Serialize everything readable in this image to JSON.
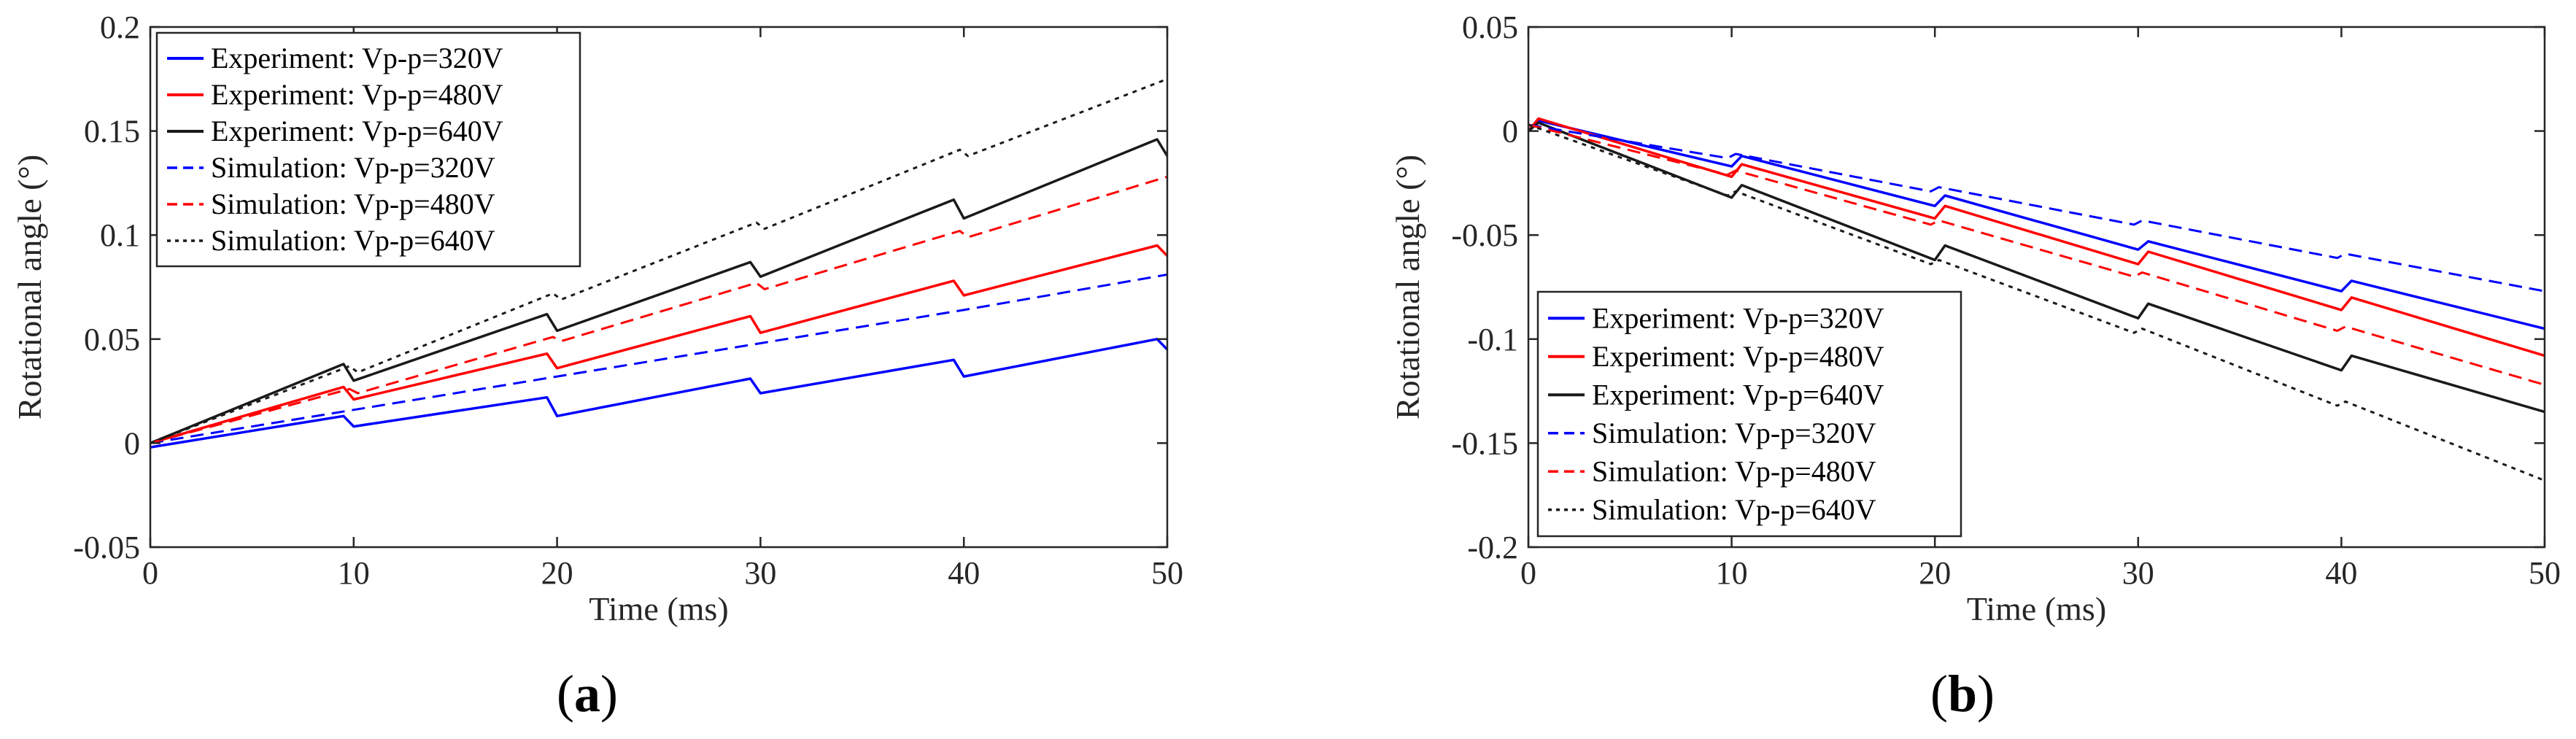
{
  "figure": {
    "panel_labels": [
      "(a)",
      "(b)"
    ]
  },
  "chart_data": [
    {
      "type": "line",
      "panel": "(a)",
      "xlabel": "Time (ms)",
      "ylabel": "Rotational angle (°)",
      "xlim": [
        0,
        50
      ],
      "ylim": [
        -0.05,
        0.2
      ],
      "xticks": [
        0,
        10,
        20,
        30,
        40,
        50
      ],
      "yticks": [
        -0.05,
        0,
        0.05,
        0.1,
        0.15,
        0.2
      ],
      "ytick_labels": [
        "-0.05",
        "0",
        "0.05",
        "0.1",
        "0.15",
        "0.2"
      ],
      "legend_position": "top-left",
      "series": [
        {
          "name": "Experiment: Vp-p=320V",
          "color": "#0000ff",
          "style": "solid",
          "x": [
            0,
            9.5,
            10,
            19.5,
            20,
            29.5,
            30,
            39.5,
            40,
            49.5,
            50
          ],
          "y": [
            -0.002,
            0.013,
            0.008,
            0.022,
            0.013,
            0.031,
            0.024,
            0.04,
            0.032,
            0.05,
            0.045
          ]
        },
        {
          "name": "Experiment: Vp-p=480V",
          "color": "#ff0000",
          "style": "solid",
          "x": [
            0,
            9.5,
            10,
            19.5,
            20,
            29.5,
            30,
            39.5,
            40,
            49.5,
            50
          ],
          "y": [
            0.0,
            0.027,
            0.021,
            0.043,
            0.036,
            0.061,
            0.053,
            0.078,
            0.071,
            0.095,
            0.09
          ]
        },
        {
          "name": "Experiment: Vp-p=640V",
          "color": "#1a1a1a",
          "style": "solid",
          "x": [
            0,
            9.5,
            10,
            19.5,
            20,
            29.5,
            30,
            39.5,
            40,
            49.5,
            50
          ],
          "y": [
            0.0,
            0.038,
            0.03,
            0.062,
            0.054,
            0.087,
            0.08,
            0.117,
            0.108,
            0.146,
            0.138
          ]
        },
        {
          "name": "Simulation: Vp-p=320V",
          "color": "#0000ff",
          "style": "dash",
          "x": [
            0,
            10,
            20,
            30,
            40,
            50
          ],
          "y": [
            0.0,
            0.016,
            0.032,
            0.048,
            0.064,
            0.081
          ]
        },
        {
          "name": "Simulation: Vp-p=480V",
          "color": "#ff0000",
          "style": "dash",
          "x": [
            0,
            9.8,
            10.2,
            19.8,
            20.2,
            29.8,
            30.2,
            39.8,
            40.2,
            50
          ],
          "y": [
            0.0,
            0.026,
            0.024,
            0.051,
            0.049,
            0.077,
            0.074,
            0.102,
            0.099,
            0.128
          ]
        },
        {
          "name": "Simulation: Vp-p=640V",
          "color": "#1a1a1a",
          "style": "dot",
          "x": [
            0,
            9.8,
            10.2,
            19.8,
            20.2,
            29.8,
            30.2,
            39.8,
            40.2,
            50
          ],
          "y": [
            0.0,
            0.037,
            0.034,
            0.072,
            0.069,
            0.106,
            0.103,
            0.141,
            0.138,
            0.175
          ]
        }
      ]
    },
    {
      "type": "line",
      "panel": "(b)",
      "xlabel": "Time (ms)",
      "ylabel": "Rotational angle (°)",
      "xlim": [
        0,
        50
      ],
      "ylim": [
        -0.2,
        0.05
      ],
      "xticks": [
        0,
        10,
        20,
        30,
        40,
        50
      ],
      "yticks": [
        -0.2,
        -0.15,
        -0.1,
        -0.05,
        0,
        0.05
      ],
      "ytick_labels": [
        "-0.2",
        "-0.15",
        "-0.1",
        "-0.05",
        "0",
        "0.05"
      ],
      "legend_position": "bottom-left",
      "series": [
        {
          "name": "Experiment: Vp-p=320V",
          "color": "#0000ff",
          "style": "solid",
          "x": [
            0,
            0.5,
            10,
            10.5,
            20,
            20.5,
            30,
            30.5,
            40,
            40.5,
            50
          ],
          "y": [
            0.0,
            0.005,
            -0.017,
            -0.012,
            -0.036,
            -0.031,
            -0.057,
            -0.053,
            -0.077,
            -0.072,
            -0.095
          ]
        },
        {
          "name": "Experiment: Vp-p=480V",
          "color": "#ff0000",
          "style": "solid",
          "x": [
            0,
            0.5,
            10,
            10.5,
            20,
            20.5,
            30,
            30.5,
            40,
            40.5,
            50
          ],
          "y": [
            0.0,
            0.006,
            -0.022,
            -0.016,
            -0.042,
            -0.036,
            -0.064,
            -0.058,
            -0.086,
            -0.08,
            -0.108
          ]
        },
        {
          "name": "Experiment: Vp-p=640V",
          "color": "#1a1a1a",
          "style": "solid",
          "x": [
            0,
            0.5,
            10,
            10.5,
            20,
            20.5,
            30,
            30.5,
            40,
            40.5,
            50
          ],
          "y": [
            0.0,
            0.004,
            -0.032,
            -0.026,
            -0.062,
            -0.055,
            -0.09,
            -0.083,
            -0.115,
            -0.108,
            -0.135
          ]
        },
        {
          "name": "Simulation: Vp-p=320V",
          "color": "#0000ff",
          "style": "dash",
          "x": [
            0,
            9.8,
            10.2,
            19.8,
            20.2,
            29.8,
            30.2,
            39.8,
            40.2,
            50
          ],
          "y": [
            0.003,
            -0.013,
            -0.011,
            -0.029,
            -0.027,
            -0.045,
            -0.043,
            -0.061,
            -0.059,
            -0.077
          ]
        },
        {
          "name": "Simulation: Vp-p=480V",
          "color": "#ff0000",
          "style": "dash",
          "x": [
            0,
            9.8,
            10.2,
            19.8,
            20.2,
            29.8,
            30.2,
            39.8,
            40.2,
            50
          ],
          "y": [
            0.003,
            -0.021,
            -0.019,
            -0.045,
            -0.043,
            -0.07,
            -0.068,
            -0.096,
            -0.094,
            -0.122
          ]
        },
        {
          "name": "Simulation: Vp-p=640V",
          "color": "#1a1a1a",
          "style": "dot",
          "x": [
            0,
            9.8,
            10.2,
            19.8,
            20.2,
            29.8,
            30.2,
            39.8,
            40.2,
            50
          ],
          "y": [
            0.003,
            -0.031,
            -0.029,
            -0.064,
            -0.062,
            -0.097,
            -0.095,
            -0.132,
            -0.13,
            -0.168
          ]
        }
      ]
    }
  ]
}
